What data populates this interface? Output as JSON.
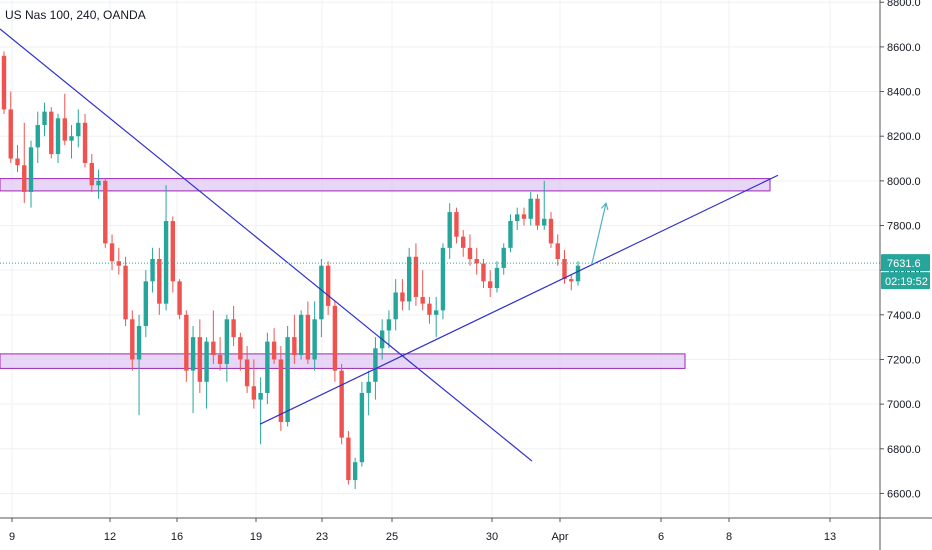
{
  "legend": {
    "symbol_text": "US Nas 100, 240, OANDA"
  },
  "colors": {
    "up": "#26a69a",
    "down": "#ef5350",
    "trendline": "#3030cc",
    "zone_fill": "#e2ccf5",
    "zone_border": "#9c27b0",
    "last_price_line": "#26a69a",
    "arrow": "#4fb3c6",
    "grid": "#eef0f3",
    "axis_border": "#555555"
  },
  "chart_data": {
    "type": "candlestick",
    "instrument": "US Nas 100",
    "interval": "240",
    "source": "OANDA",
    "ylim": [
      6490,
      8810
    ],
    "y_ticks": [
      6600.0,
      6800.0,
      7000.0,
      7200.0,
      7400.0,
      7600.0,
      7800.0,
      8000.0,
      8200.0,
      8400.0,
      8600.0,
      8800.0
    ],
    "y_tick_labels": [
      "6600.0",
      "6800.0",
      "7000.0",
      "7200.0",
      "7400.0",
      "7600.0",
      "7800.0",
      "8000.0",
      "8200.0",
      "8400.0",
      "8600.0",
      "8800.0"
    ],
    "x_tick_labels": [
      "9",
      "12",
      "16",
      "19",
      "23",
      "25",
      "30",
      "Apr",
      "6",
      "8",
      "13"
    ],
    "last_price": {
      "value": 7631.6,
      "label": "7631.6"
    },
    "countdown": {
      "label": "02:19:52"
    },
    "candles": [
      [
        8560,
        8580,
        8300,
        8320
      ],
      [
        8320,
        8400,
        8080,
        8100
      ],
      [
        8100,
        8160,
        8040,
        8070
      ],
      [
        8070,
        8260,
        7900,
        7950
      ],
      [
        7950,
        8180,
        7880,
        8150
      ],
      [
        8150,
        8310,
        8080,
        8250
      ],
      [
        8250,
        8350,
        8200,
        8310
      ],
      [
        8310,
        8330,
        8100,
        8120
      ],
      [
        8120,
        8300,
        8080,
        8280
      ],
      [
        8280,
        8390,
        8160,
        8180
      ],
      [
        8180,
        8250,
        8100,
        8200
      ],
      [
        8200,
        8320,
        8150,
        8260
      ],
      [
        8260,
        8300,
        8060,
        8080
      ],
      [
        8080,
        8120,
        7950,
        7980
      ],
      [
        7980,
        8050,
        7920,
        8000
      ],
      [
        8000,
        8010,
        7700,
        7720
      ],
      [
        7720,
        7760,
        7600,
        7640
      ],
      [
        7640,
        7700,
        7580,
        7620
      ],
      [
        7620,
        7660,
        7350,
        7380
      ],
      [
        7380,
        7420,
        7150,
        7200
      ],
      [
        7200,
        7400,
        6950,
        7350
      ],
      [
        7350,
        7600,
        7300,
        7550
      ],
      [
        7550,
        7700,
        7500,
        7650
      ],
      [
        7650,
        7700,
        7400,
        7450
      ],
      [
        7450,
        7980,
        7420,
        7820
      ],
      [
        7820,
        7840,
        7500,
        7550
      ],
      [
        7550,
        7560,
        7380,
        7400
      ],
      [
        7400,
        7420,
        7100,
        7150
      ],
      [
        7150,
        7350,
        6960,
        7300
      ],
      [
        7300,
        7380,
        7050,
        7100
      ],
      [
        7100,
        7300,
        6980,
        7280
      ],
      [
        7280,
        7420,
        7180,
        7220
      ],
      [
        7220,
        7300,
        7150,
        7180
      ],
      [
        7180,
        7400,
        7100,
        7380
      ],
      [
        7380,
        7440,
        7260,
        7300
      ],
      [
        7300,
        7320,
        7150,
        7200
      ],
      [
        7200,
        7260,
        7050,
        7080
      ],
      [
        7080,
        7200,
        6980,
        7020
      ],
      [
        7020,
        7120,
        6820,
        7050
      ],
      [
        7050,
        7320,
        7000,
        7280
      ],
      [
        7280,
        7340,
        7180,
        7200
      ],
      [
        7200,
        7260,
        6880,
        6920
      ],
      [
        6920,
        7350,
        6900,
        7300
      ],
      [
        7300,
        7400,
        7180,
        7220
      ],
      [
        7220,
        7420,
        7200,
        7400
      ],
      [
        7400,
        7460,
        7180,
        7200
      ],
      [
        7200,
        7460,
        7150,
        7380
      ],
      [
        7380,
        7650,
        7300,
        7620
      ],
      [
        7620,
        7640,
        7400,
        7440
      ],
      [
        7440,
        7460,
        7100,
        7150
      ],
      [
        7150,
        7180,
        6820,
        6850
      ],
      [
        6850,
        6880,
        6640,
        6660
      ],
      [
        6660,
        6760,
        6620,
        6740
      ],
      [
        6740,
        7100,
        6720,
        7050
      ],
      [
        7050,
        7150,
        6950,
        7100
      ],
      [
        7100,
        7300,
        7020,
        7250
      ],
      [
        7250,
        7380,
        7200,
        7330
      ],
      [
        7330,
        7420,
        7250,
        7380
      ],
      [
        7380,
        7560,
        7330,
        7500
      ],
      [
        7500,
        7560,
        7420,
        7460
      ],
      [
        7460,
        7700,
        7420,
        7660
      ],
      [
        7660,
        7720,
        7440,
        7480
      ],
      [
        7480,
        7600,
        7420,
        7450
      ],
      [
        7450,
        7480,
        7360,
        7400
      ],
      [
        7400,
        7480,
        7300,
        7420
      ],
      [
        7420,
        7720,
        7380,
        7700
      ],
      [
        7700,
        7900,
        7650,
        7860
      ],
      [
        7860,
        7880,
        7720,
        7750
      ],
      [
        7750,
        7780,
        7660,
        7700
      ],
      [
        7700,
        7760,
        7620,
        7650
      ],
      [
        7650,
        7700,
        7580,
        7630
      ],
      [
        7630,
        7650,
        7520,
        7550
      ],
      [
        7550,
        7600,
        7480,
        7520
      ],
      [
        7520,
        7640,
        7500,
        7610
      ],
      [
        7610,
        7720,
        7580,
        7700
      ],
      [
        7700,
        7850,
        7680,
        7820
      ],
      [
        7820,
        7880,
        7780,
        7850
      ],
      [
        7850,
        7880,
        7800,
        7830
      ],
      [
        7830,
        7950,
        7800,
        7920
      ],
      [
        7920,
        7940,
        7780,
        7800
      ],
      [
        7800,
        8000,
        7780,
        7830
      ],
      [
        7830,
        7860,
        7700,
        7720
      ],
      [
        7720,
        7760,
        7620,
        7650
      ],
      [
        7650,
        7690,
        7540,
        7560
      ],
      [
        7560,
        7580,
        7510,
        7550
      ],
      [
        7550,
        7640,
        7530,
        7620
      ]
    ],
    "horizontal_zones": [
      {
        "top": 8010,
        "bottom": 7955,
        "x_start": 0,
        "x_end": 770
      },
      {
        "top": 7225,
        "bottom": 7160,
        "x_start": 0,
        "x_end": 685
      }
    ],
    "trendlines": [
      {
        "from": [
          0,
          8680
        ],
        "to": [
          532,
          6745
        ]
      },
      {
        "from": [
          260,
          6910
        ],
        "to": [
          778,
          8025
        ]
      }
    ],
    "projection_arrow": {
      "from": [
        592,
        7630
      ],
      "to": [
        606,
        7900
      ]
    }
  }
}
